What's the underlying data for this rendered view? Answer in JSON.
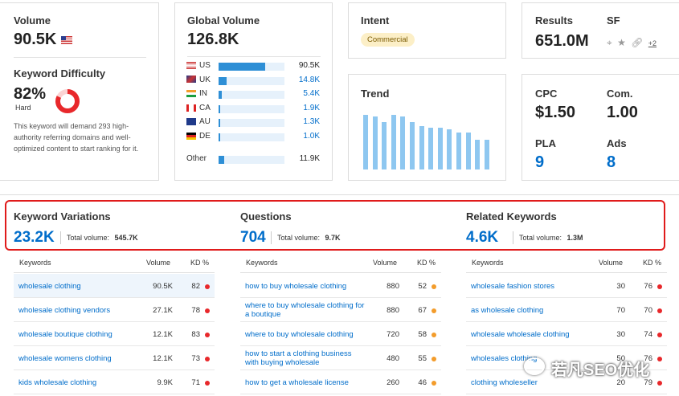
{
  "volume": {
    "label": "Volume",
    "value": "90.5K"
  },
  "kd": {
    "label": "Keyword Difficulty",
    "value": "82%",
    "level": "Hard",
    "percent": 82,
    "desc": "This keyword will demand 293 high-authority referring domains and well-optimized content to start ranking for it."
  },
  "global": {
    "label": "Global Volume",
    "value": "126.8K",
    "rows": [
      {
        "code": "US",
        "value": "90.5K",
        "share": 0.71,
        "color": "#222"
      },
      {
        "code": "UK",
        "value": "14.8K",
        "share": 0.12,
        "color": "#006dca"
      },
      {
        "code": "IN",
        "value": "5.4K",
        "share": 0.05,
        "color": "#006dca"
      },
      {
        "code": "CA",
        "value": "1.9K",
        "share": 0.02,
        "color": "#006dca"
      },
      {
        "code": "AU",
        "value": "1.3K",
        "share": 0.02,
        "color": "#006dca"
      },
      {
        "code": "DE",
        "value": "1.0K",
        "share": 0.02,
        "color": "#006dca"
      }
    ],
    "other": {
      "code": "Other",
      "value": "11.9K",
      "share": 0.09
    }
  },
  "intent": {
    "label": "Intent",
    "badge": "Commercial"
  },
  "results": {
    "label": "Results",
    "value": "651.0M"
  },
  "sf": {
    "label": "SF",
    "more": "+2"
  },
  "trend": {
    "label": "Trend",
    "values": [
      1.0,
      0.97,
      0.87,
      1.0,
      0.97,
      0.87,
      0.79,
      0.77,
      0.77,
      0.74,
      0.67,
      0.67,
      0.54,
      0.54
    ]
  },
  "cpc": {
    "label": "CPC",
    "value": "$1.50"
  },
  "com": {
    "label": "Com.",
    "value": "1.00"
  },
  "pla": {
    "label": "PLA",
    "value": "9"
  },
  "ads": {
    "label": "Ads",
    "value": "8"
  },
  "sections": [
    {
      "title": "Keyword Variations",
      "count": "23.2K",
      "total_label": "Total volume:",
      "total": "545.7K"
    },
    {
      "title": "Questions",
      "count": "704",
      "total_label": "Total volume:",
      "total": "9.7K"
    },
    {
      "title": "Related Keywords",
      "count": "4.6K",
      "total_label": "Total volume:",
      "total": "1.3M"
    }
  ],
  "headers": {
    "kw": "Keywords",
    "vol": "Volume",
    "kd": "KD %"
  },
  "tables": [
    [
      {
        "kw": "wholesale clothing",
        "vol": "90.5K",
        "kd": "82",
        "c": "#e8282b"
      },
      {
        "kw": "wholesale clothing vendors",
        "vol": "27.1K",
        "kd": "78",
        "c": "#e8282b"
      },
      {
        "kw": "wholesale boutique clothing",
        "vol": "12.1K",
        "kd": "83",
        "c": "#e8282b"
      },
      {
        "kw": "wholesale womens clothing",
        "vol": "12.1K",
        "kd": "73",
        "c": "#e8282b"
      },
      {
        "kw": "kids wholesale clothing",
        "vol": "9.9K",
        "kd": "71",
        "c": "#e8282b"
      }
    ],
    [
      {
        "kw": "how to buy wholesale clothing",
        "vol": "880",
        "kd": "52",
        "c": "#f39c2b"
      },
      {
        "kw": "where to buy wholesale clothing for a boutique",
        "vol": "880",
        "kd": "67",
        "c": "#f39c2b"
      },
      {
        "kw": "where to buy wholesale clothing",
        "vol": "720",
        "kd": "58",
        "c": "#f39c2b"
      },
      {
        "kw": "how to start a clothing business with buying wholesale",
        "vol": "480",
        "kd": "55",
        "c": "#f39c2b"
      },
      {
        "kw": "how to get a wholesale license",
        "vol": "260",
        "kd": "46",
        "c": "#f39c2b"
      }
    ],
    [
      {
        "kw": "wholesale fashion stores",
        "vol": "30",
        "kd": "76",
        "c": "#e8282b"
      },
      {
        "kw": "as wholesale clothing",
        "vol": "70",
        "kd": "70",
        "c": "#e8282b"
      },
      {
        "kw": "wholesale wholesale clothing",
        "vol": "30",
        "kd": "74",
        "c": "#e8282b"
      },
      {
        "kw": "wholesales clothing",
        "vol": "50",
        "kd": "76",
        "c": "#e8282b"
      },
      {
        "kw": "clothing wholeseller",
        "vol": "20",
        "kd": "79",
        "c": "#e8282b"
      }
    ]
  ],
  "watermark": "若凡SEO优化"
}
